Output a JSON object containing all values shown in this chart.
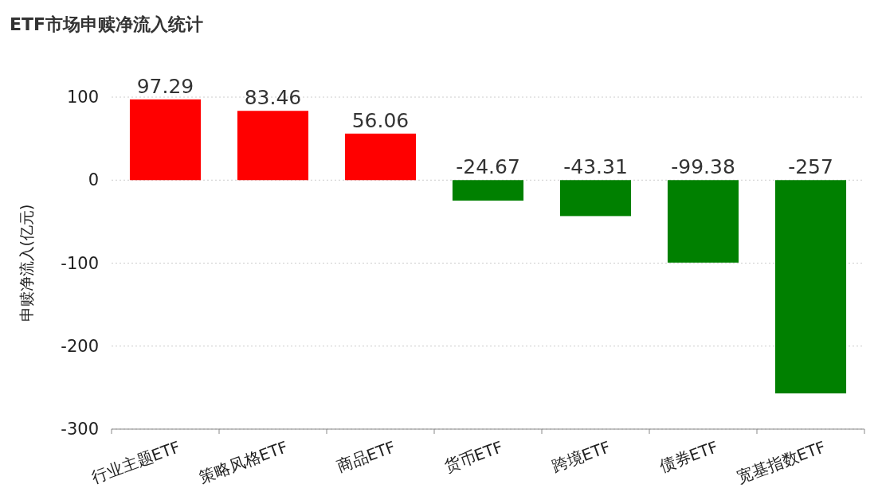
{
  "chart_data": {
    "type": "bar",
    "title": "ETF市场申赎净流入统计",
    "ylabel": "申赎净流入(亿元)",
    "categories": [
      "行业主题ETF",
      "策略风格ETF",
      "商品ETF",
      "货币ETF",
      "跨境ETF",
      "债券ETF",
      "宽基指数ETF"
    ],
    "values": [
      97.29,
      83.46,
      56.06,
      -24.67,
      -43.31,
      -99.38,
      -257
    ],
    "colors": [
      "#ff0000",
      "#ff0000",
      "#ff0000",
      "#008000",
      "#008000",
      "#008000",
      "#008000"
    ],
    "ylim": [
      -300,
      100
    ],
    "yticks": [
      -300,
      -200,
      -100,
      0,
      100
    ],
    "grid": "y",
    "data_labels": true
  }
}
